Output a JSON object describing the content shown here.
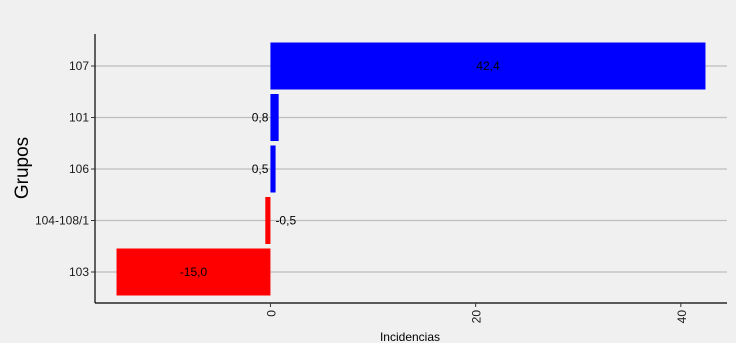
{
  "chart_data": {
    "type": "bar",
    "orientation": "horizontal",
    "categories": [
      "107",
      "101",
      "106",
      "104-108/1",
      "103"
    ],
    "values": [
      42.4,
      0.8,
      0.5,
      -0.5,
      -15.0
    ],
    "data_labels": [
      "42,4",
      "0,8",
      "0,5",
      "-0,5",
      "-15,0"
    ],
    "colors": [
      "#0000ff",
      "#0000ff",
      "#0000ff",
      "#ff0000",
      "#ff0000"
    ],
    "xlabel": "Incidencias",
    "ylabel": "Grupos",
    "x_ticks": [
      0,
      20,
      40
    ],
    "x_tick_labels": [
      "0",
      "20",
      "40"
    ],
    "xlim": [
      -17.1,
      44.5
    ],
    "grid": "horizontal gridlines at categories",
    "legend": "none",
    "background": "#f0f0f0"
  }
}
